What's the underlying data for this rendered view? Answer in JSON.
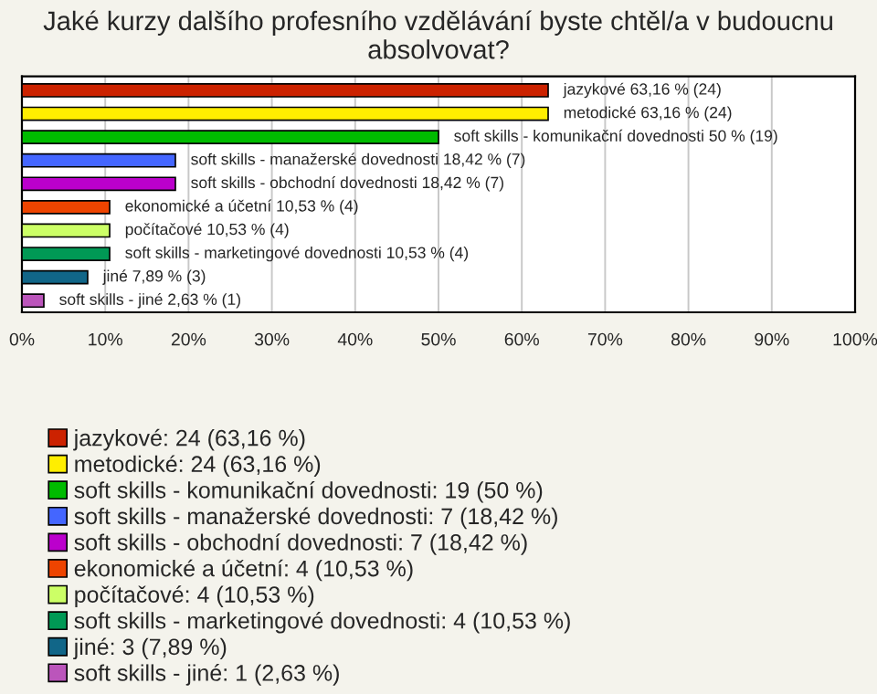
{
  "chart_data": {
    "type": "bar",
    "orientation": "horizontal",
    "title": "Jaké kurzy dalšího profesního vzdělávání byste chtěl/a v budoucnu absolvovat?",
    "categories": [
      null,
      null,
      null,
      null,
      null,
      null,
      null,
      null,
      null,
      null
    ],
    "series": [
      {
        "name": "jazykové: 24 (63,16 %)",
        "color": "#cc2200",
        "values": [
          63.16,
          null,
          null,
          null,
          null,
          null,
          null,
          null,
          null,
          null
        ],
        "value_labels": [
          "jazykové 63,16 % (24)",
          null,
          null,
          null,
          null,
          null,
          null,
          null,
          null,
          null
        ]
      },
      {
        "name": "metodické: 24 (63,16 %)",
        "color": "#ffee00",
        "values": [
          null,
          63.16,
          null,
          null,
          null,
          null,
          null,
          null,
          null,
          null
        ],
        "value_labels": [
          null,
          "metodické 63,16 % (24)",
          null,
          null,
          null,
          null,
          null,
          null,
          null,
          null
        ]
      },
      {
        "name": "soft skills - komunikační dovednosti: 19 (50 %)",
        "color": "#00bb00",
        "values": [
          null,
          null,
          50,
          null,
          null,
          null,
          null,
          null,
          null,
          null
        ],
        "value_labels": [
          null,
          null,
          "soft skills - komunikační dovednosti 50 % (19)",
          null,
          null,
          null,
          null,
          null,
          null,
          null
        ]
      },
      {
        "name": "soft skills - manažerské dovednosti: 7 (18,42 %)",
        "color": "#4466ff",
        "values": [
          null,
          null,
          null,
          18.42,
          null,
          null,
          null,
          null,
          null,
          null
        ],
        "value_labels": [
          null,
          null,
          null,
          "soft skills - manažerské dovednosti 18,42 % (7)",
          null,
          null,
          null,
          null,
          null,
          null
        ]
      },
      {
        "name": "soft skills - obchodní dovednosti: 7 (18,42 %)",
        "color": "#bb00cc",
        "values": [
          null,
          null,
          null,
          null,
          18.42,
          null,
          null,
          null,
          null,
          null
        ],
        "value_labels": [
          null,
          null,
          null,
          null,
          "soft skills - obchodní dovednosti 18,42 % (7)",
          null,
          null,
          null,
          null,
          null
        ]
      },
      {
        "name": "ekonomické a účetní: 4 (10,53 %)",
        "color": "#ee4400",
        "values": [
          null,
          null,
          null,
          null,
          null,
          10.53,
          null,
          null,
          null,
          null
        ],
        "value_labels": [
          null,
          null,
          null,
          null,
          null,
          "ekonomické a účetní 10,53 % (4)",
          null,
          null,
          null,
          null
        ]
      },
      {
        "name": "počítačové: 4 (10,53 %)",
        "color": "#ccff66",
        "values": [
          null,
          null,
          null,
          null,
          null,
          null,
          10.53,
          null,
          null,
          null
        ],
        "value_labels": [
          null,
          null,
          null,
          null,
          null,
          null,
          "počítačové 10,53 % (4)",
          null,
          null,
          null
        ]
      },
      {
        "name": "soft skills - marketingové dovednosti: 4 (10,53 %)",
        "color": "#009955",
        "values": [
          null,
          null,
          null,
          null,
          null,
          null,
          null,
          10.53,
          null,
          null
        ],
        "value_labels": [
          null,
          null,
          null,
          null,
          null,
          null,
          null,
          "soft skills - marketingové dovednosti 10,53 % (4)",
          null,
          null
        ]
      },
      {
        "name": "jiné: 3 (7,89 %)",
        "color": "#116688",
        "values": [
          null,
          null,
          null,
          null,
          null,
          null,
          null,
          null,
          7.89,
          null
        ],
        "value_labels": [
          null,
          null,
          null,
          null,
          null,
          null,
          null,
          null,
          "jiné 7,89 % (3)",
          null
        ]
      },
      {
        "name": "soft skills - jiné: 1 (2,63 %)",
        "color": "#bb55bb",
        "values": [
          null,
          null,
          null,
          null,
          null,
          null,
          null,
          null,
          null,
          2.63
        ],
        "value_labels": [
          null,
          null,
          null,
          null,
          null,
          null,
          null,
          null,
          null,
          "soft skills - jiné 2,63 % (1)"
        ]
      }
    ],
    "xlim": [
      0,
      100
    ],
    "xticks": [
      {
        "value": 0,
        "label": "0%"
      },
      {
        "value": 10,
        "label": "10%"
      },
      {
        "value": 20,
        "label": "20%"
      },
      {
        "value": 30,
        "label": "30%"
      },
      {
        "value": 40,
        "label": "40%"
      },
      {
        "value": 50,
        "label": "50%"
      },
      {
        "value": 60,
        "label": "60%"
      },
      {
        "value": 70,
        "label": "70%"
      },
      {
        "value": 80,
        "label": "80%"
      },
      {
        "value": 90,
        "label": "90%"
      },
      {
        "value": 100,
        "label": "100%"
      }
    ],
    "grid": "x",
    "legend": "bottom"
  }
}
